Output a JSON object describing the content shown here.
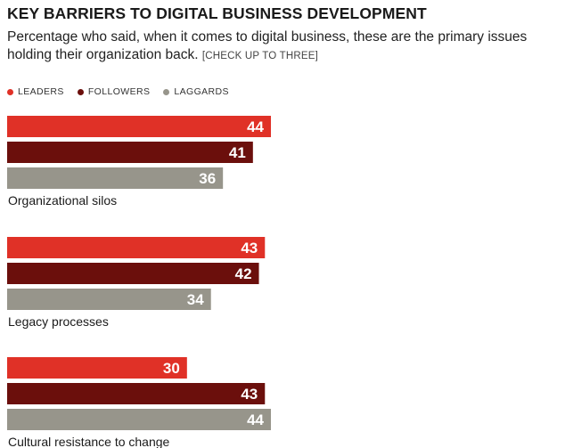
{
  "chart_data": {
    "type": "bar",
    "orientation": "horizontal",
    "title": "KEY BARRIERS TO DIGITAL BUSINESS DEVELOPMENT",
    "subtitle": "Percentage who said, when it comes to digital business, these are the primary issues holding their organization back.",
    "note": "[CHECK UP TO THREE]",
    "legend_position": "top-left",
    "grid": false,
    "xlim": [
      0,
      44
    ],
    "categories": [
      "Organizational silos",
      "Legacy processes",
      "Cultural resistance to change"
    ],
    "series": [
      {
        "name": "LEADERS",
        "color": "#e03127",
        "values": [
          44,
          43,
          30
        ]
      },
      {
        "name": "FOLLOWERS",
        "color": "#6b0f0c",
        "values": [
          41,
          42,
          43
        ]
      },
      {
        "name": "LAGGARDS",
        "color": "#97958b",
        "values": [
          36,
          34,
          44
        ]
      }
    ]
  }
}
